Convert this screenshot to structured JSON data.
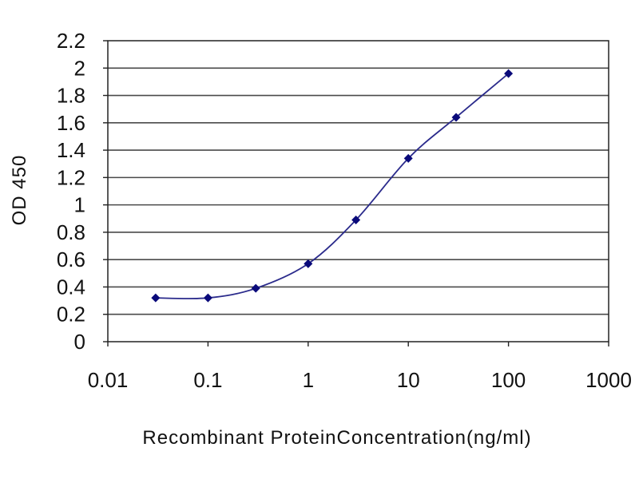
{
  "chart_data": {
    "type": "line",
    "title": "",
    "xlabel": "Recombinant ProteinConcentration(ng/ml)",
    "ylabel": "OD 450",
    "x_scale": "log",
    "xlim": [
      0.01,
      1000
    ],
    "ylim": [
      0,
      2.2
    ],
    "x_ticks": [
      "0.01",
      "0.1",
      "1",
      "10",
      "100",
      "1000"
    ],
    "y_ticks": [
      "0",
      "0.2",
      "0.4",
      "0.6",
      "0.8",
      "1",
      "1.2",
      "1.4",
      "1.6",
      "1.8",
      "2",
      "2.2"
    ],
    "grid": "horizontal",
    "legend": "none",
    "series": [
      {
        "x": [
          0.03,
          0.1,
          0.3,
          1,
          3,
          10,
          30,
          100
        ],
        "y": [
          0.32,
          0.32,
          0.39,
          0.57,
          0.89,
          1.34,
          1.64,
          1.96
        ],
        "color": "#2b2b8c",
        "marker_color": "#0a0a7a"
      }
    ],
    "colors": {
      "plot_border": "#222222",
      "grid": "#4a4a4a",
      "plot_background": "#ffffff"
    }
  }
}
